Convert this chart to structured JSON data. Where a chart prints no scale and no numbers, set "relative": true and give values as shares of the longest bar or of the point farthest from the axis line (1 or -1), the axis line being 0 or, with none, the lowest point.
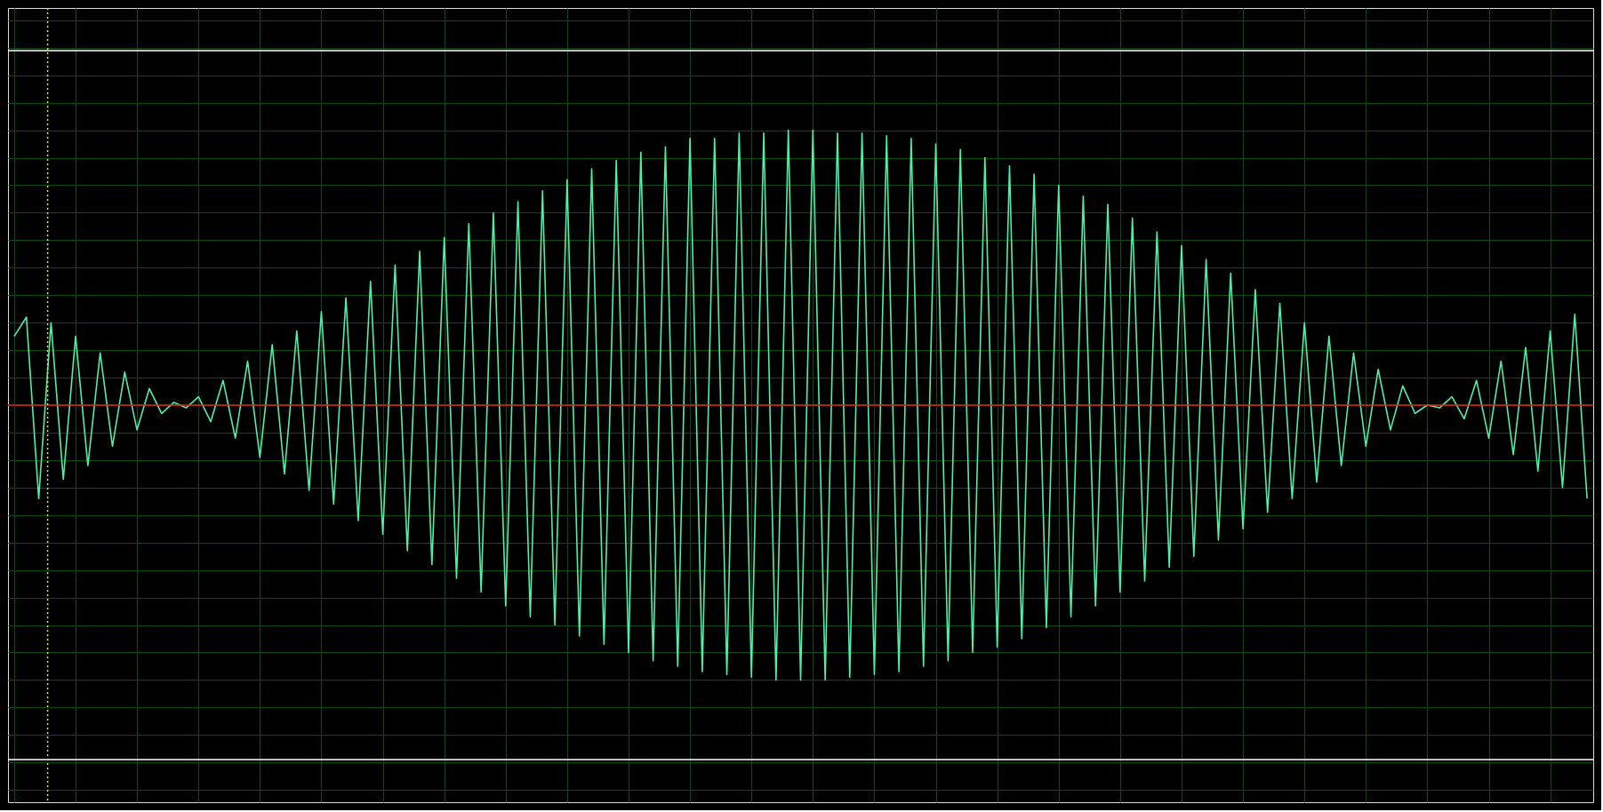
{
  "chart_data": {
    "type": "line",
    "relative": true,
    "tick_labels": false,
    "grid": true,
    "legend": false,
    "marker": "none",
    "line_style": "solid",
    "categories": [
      null,
      null,
      null,
      null,
      null,
      null,
      null,
      null,
      null,
      null,
      null,
      null,
      null,
      null,
      null,
      null,
      null,
      null,
      null,
      null,
      null,
      null,
      null,
      null,
      null,
      null,
      null,
      null,
      null,
      null,
      null,
      null,
      null,
      null,
      null,
      null,
      null,
      null,
      null,
      null,
      null,
      null,
      null,
      null,
      null,
      null,
      null,
      null,
      null,
      null,
      null,
      null,
      null,
      null,
      null,
      null,
      null,
      null,
      null,
      null,
      null,
      null,
      null,
      null,
      null,
      null,
      null,
      null,
      null,
      null,
      null,
      null,
      null,
      null,
      null,
      null,
      null,
      null,
      null,
      null,
      null,
      null,
      null,
      null,
      null,
      null,
      null,
      null,
      null,
      null,
      null,
      null,
      null,
      null,
      null,
      null,
      null,
      null,
      null,
      null,
      null,
      null,
      null,
      null,
      null,
      null,
      null,
      null,
      null,
      null,
      null,
      null,
      null,
      null,
      null,
      null,
      null,
      null,
      null,
      null,
      null,
      null,
      null,
      null,
      null,
      null,
      null,
      null,
      null
    ],
    "ref_lines": [
      {
        "axis": "y",
        "value": 1.29,
        "color": "#ffffff",
        "line_style": "solid"
      },
      {
        "axis": "y",
        "value": -1.29,
        "color": "#ffffff",
        "line_style": "solid"
      },
      {
        "axis": "y",
        "value": 0,
        "color": "#e0201c",
        "line_style": "solid"
      }
    ],
    "series": [
      {
        "color": "#4cf0a8",
        "values": [
          0.25,
          0.32,
          -0.34,
          0.3,
          -0.27,
          0.25,
          -0.22,
          0.19,
          -0.15,
          0.12,
          -0.09,
          0.06,
          -0.03,
          0.01,
          -0.01,
          0.03,
          -0.06,
          0.09,
          -0.12,
          0.16,
          -0.19,
          0.22,
          -0.25,
          0.27,
          -0.31,
          0.34,
          -0.36,
          0.39,
          -0.42,
          0.45,
          -0.47,
          0.51,
          -0.53,
          0.56,
          -0.58,
          0.61,
          -0.63,
          0.66,
          -0.68,
          0.7,
          -0.73,
          0.74,
          -0.77,
          0.78,
          -0.8,
          0.82,
          -0.84,
          0.86,
          -0.87,
          0.89,
          -0.9,
          0.92,
          -0.93,
          0.94,
          -0.95,
          0.97,
          -0.97,
          0.97,
          -0.98,
          0.99,
          -0.99,
          0.99,
          -1.0,
          1.0,
          -1.0,
          1.0,
          -1.0,
          0.99,
          -0.99,
          0.99,
          -0.98,
          0.98,
          -0.97,
          0.97,
          -0.95,
          0.95,
          -0.93,
          0.93,
          -0.9,
          0.9,
          -0.88,
          0.87,
          -0.85,
          0.84,
          -0.81,
          0.8,
          -0.77,
          0.76,
          -0.73,
          0.73,
          -0.68,
          0.68,
          -0.64,
          0.63,
          -0.59,
          0.58,
          -0.55,
          0.53,
          -0.49,
          0.48,
          -0.45,
          0.42,
          -0.39,
          0.37,
          -0.34,
          0.3,
          -0.28,
          0.25,
          -0.22,
          0.19,
          -0.15,
          0.13,
          -0.09,
          0.07,
          -0.03,
          0.0,
          -0.01,
          0.03,
          -0.05,
          0.09,
          -0.12,
          0.16,
          -0.18,
          0.21,
          -0.24,
          0.27,
          -0.3,
          0.33,
          -0.34
        ]
      }
    ]
  }
}
